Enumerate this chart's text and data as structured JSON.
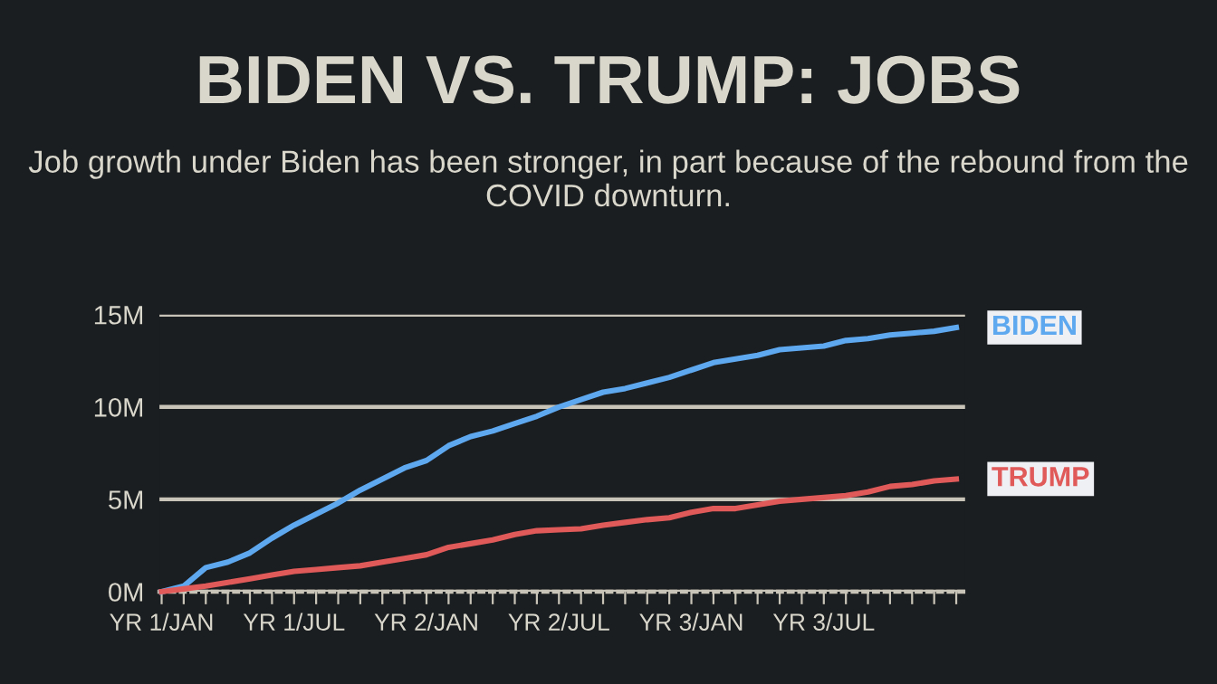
{
  "chart_data": {
    "type": "line",
    "title": "BIDEN VS. TRUMP: JOBS",
    "subtitle": "Job growth under Biden has been stronger, in part because of the rebound from the COVID downturn.",
    "categories": [
      "YR 1/JAN",
      null,
      null,
      null,
      null,
      null,
      "YR 1/JUL",
      null,
      null,
      null,
      null,
      null,
      "YR 2/JAN",
      null,
      null,
      null,
      null,
      null,
      "YR 2/JUL",
      null,
      null,
      null,
      null,
      null,
      "YR 3/JAN",
      null,
      null,
      null,
      null,
      null,
      "YR 3/JUL",
      null,
      null,
      null,
      null,
      null,
      null
    ],
    "series": [
      {
        "name": "BIDEN",
        "color": "#5ea8f0",
        "values": [
          0,
          0.3,
          1.3,
          1.6,
          2.1,
          2.9,
          3.6,
          4.2,
          4.8,
          5.5,
          6.1,
          6.7,
          7.1,
          7.9,
          8.4,
          8.7,
          9.1,
          9.5,
          10.0,
          10.4,
          10.8,
          11.0,
          11.3,
          11.6,
          12.0,
          12.4,
          12.6,
          12.8,
          13.1,
          13.2,
          13.3,
          13.6,
          13.7,
          13.9,
          14.0,
          14.1,
          14.3
        ]
      },
      {
        "name": "TRUMP",
        "color": "#e05a5a",
        "values": [
          0,
          0.15,
          0.3,
          0.5,
          0.7,
          0.9,
          1.1,
          1.2,
          1.3,
          1.4,
          1.6,
          1.8,
          2.0,
          2.4,
          2.6,
          2.8,
          3.1,
          3.3,
          3.35,
          3.4,
          3.6,
          3.75,
          3.9,
          4.0,
          4.3,
          4.5,
          4.5,
          4.7,
          4.9,
          5.0,
          5.1,
          5.2,
          5.4,
          5.7,
          5.8,
          6.0,
          6.1
        ]
      }
    ],
    "ylim": [
      0,
      15
    ],
    "yticks": [
      {
        "value": 0,
        "label": "0M"
      },
      {
        "value": 5,
        "label": "5M"
      },
      {
        "value": 10,
        "label": "10M"
      },
      {
        "value": 15,
        "label": "15M"
      }
    ],
    "grid": "y",
    "legend": false,
    "marker": "none",
    "line_style": "solid"
  }
}
